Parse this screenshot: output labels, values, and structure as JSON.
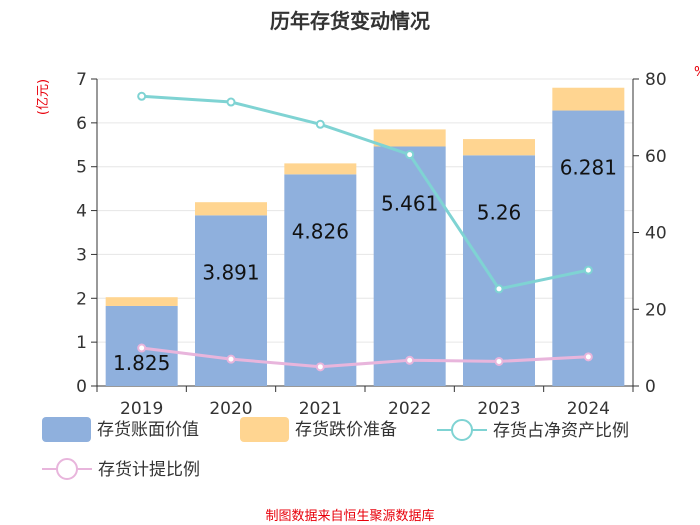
{
  "title": "历年存货变动情况",
  "source": "制图数据来自恒生聚源数据库",
  "colors": {
    "book_value": "#8fb0dd",
    "provision": "#ffd591",
    "inventory_ratio": "#7fd3d3",
    "provision_ratio": "#e8b5dc",
    "axis": "#333333",
    "unit": "#e8000b"
  },
  "chart_data": {
    "type": "bar",
    "title": "历年存货变动情况",
    "categories": [
      "2019",
      "2020",
      "2021",
      "2022",
      "2023",
      "2024"
    ],
    "y_left": {
      "unit": "(亿元)",
      "ylim": [
        0,
        7
      ],
      "ticks": [
        "0",
        "1",
        "2",
        "3",
        "4",
        "5",
        "6",
        "7"
      ]
    },
    "y_right": {
      "unit": "%",
      "ylim": [
        0,
        80
      ],
      "ticks": [
        "0",
        "20",
        "40",
        "60",
        "80"
      ]
    },
    "series": [
      {
        "name": "存货账面价值",
        "type": "bar",
        "axis": "left",
        "stack": "inv",
        "values": [
          1.825,
          3.891,
          4.826,
          5.461,
          5.26,
          6.281
        ],
        "labels": [
          "1.825",
          "3.891",
          "4.826",
          "5.461",
          "5.26",
          "6.281"
        ]
      },
      {
        "name": "存货跌价准备",
        "type": "bar",
        "axis": "left",
        "stack": "inv",
        "values": [
          0.2,
          0.3,
          0.25,
          0.39,
          0.37,
          0.52
        ]
      },
      {
        "name": "存货占净资产比例",
        "type": "line",
        "axis": "right",
        "values": [
          75.5,
          74.0,
          68.2,
          60.3,
          25.3,
          30.2
        ]
      },
      {
        "name": "存货计提比例",
        "type": "line",
        "axis": "right",
        "values": [
          9.9,
          7.0,
          5.0,
          6.7,
          6.4,
          7.6
        ]
      }
    ],
    "legend": {
      "position": "bottom"
    }
  }
}
